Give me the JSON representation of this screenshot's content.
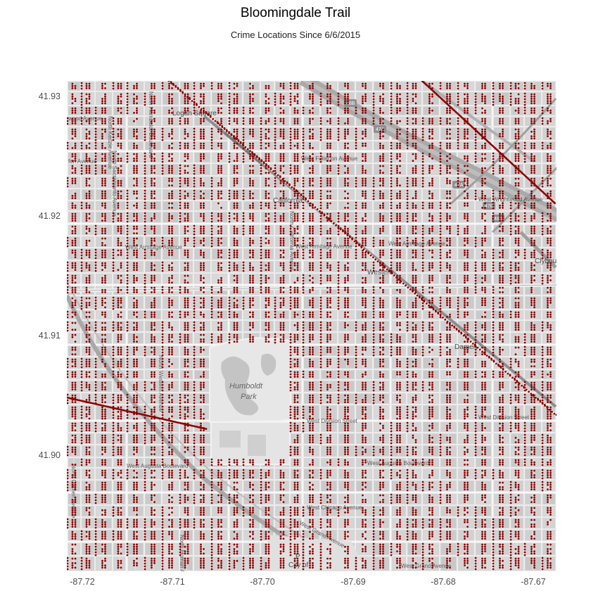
{
  "chart_data": {
    "type": "scatter",
    "title": "Bloomingdale Trail",
    "subtitle": "Crime Locations Since 6/6/2015",
    "xlabel": "",
    "ylabel": "",
    "xlim": [
      -87.7228,
      -87.6669
    ],
    "ylim": [
      41.8959,
      41.9309
    ],
    "x_ticks": [
      "-87.72",
      "-87.71",
      "-87.70",
      "-87.69",
      "-87.68",
      "-87.67"
    ],
    "y_ticks": [
      "41.93",
      "41.92",
      "41.91",
      "41.90"
    ],
    "point_color": "#8b0000",
    "basemap": "grayscale street tiles",
    "grid": false,
    "legend": "none",
    "map_labels": {
      "logan_square": "Logan Square",
      "california": "California",
      "western": "Western",
      "damen": "Damen",
      "humboldt": "Humboldt",
      "park": "Park",
      "city_of": "City of",
      "parking": "P",
      "w_fullerton": "West Fullerton Avenue",
      "w_armitage_left": "West Armitage Avenue",
      "w_armitage_mid": "West Armitage Avenue",
      "w_armitage_right": "West Armitage Avenue",
      "w_division_mid": "West Division Street",
      "w_division_right": "West Division Street",
      "w_augusta_left": "West Augusta Boulevard",
      "w_augusta_mid": "West Augusta Boulevard",
      "w_chicago": "West Chicago Avenue",
      "w_grand_diag": "West Grand Avenue",
      "w_grand_bottom": "West Grand Avenue",
      "w_wrightwood": "West Wrightwood Avenue",
      "n_kedzie": "North Kedzie Avenue",
      "n_humboldt": "North Humboldt Boulevard",
      "n_california": "North California Avenue",
      "n_western": "North Western Avenue",
      "n_damen": "North Damen Avenue",
      "n_homan": "North Homan Avenue",
      "n_sacramento": "North Sacramento Avenue",
      "wood_ave": "wood Avenue",
      "fon_ave": "fon Avenue",
      "clybourn": "Clybou",
      "milwaukee": "Milwaukee Avenue",
      "exit_46b": "46B",
      "exit_47a_1": "47A",
      "exit_47a_2": "47A",
      "exit_47b": "47B",
      "exit_48a": "48A"
    }
  }
}
